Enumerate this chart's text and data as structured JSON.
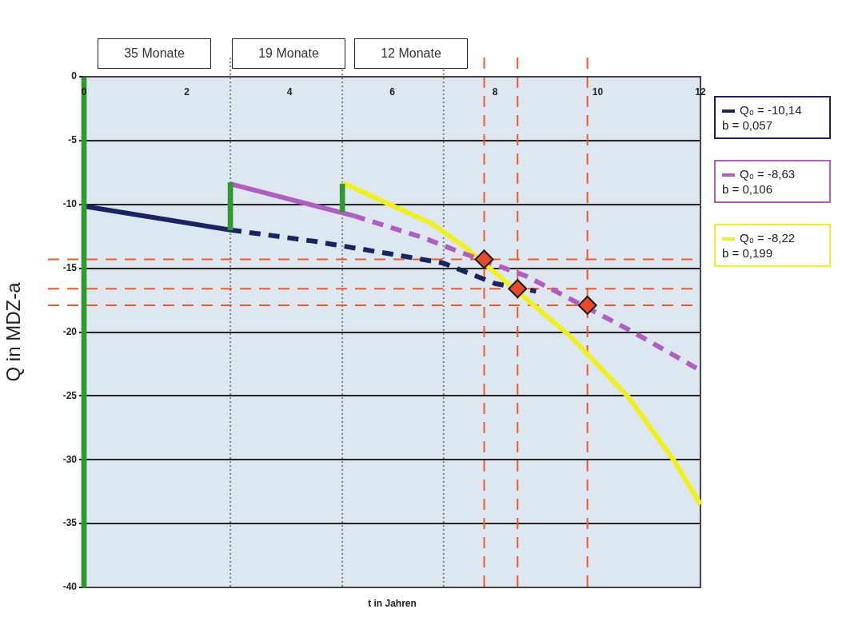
{
  "chart_data": {
    "type": "line",
    "xlabel": "t in Jahren",
    "ylabel": "Q in MDZ-a",
    "xlim": [
      0,
      12
    ],
    "xticks": [
      0,
      2,
      4,
      6,
      8,
      10,
      12
    ],
    "ylim": [
      -40,
      0
    ],
    "yticks": [
      -40,
      -35,
      -30,
      -25,
      -20,
      -15,
      -10,
      -5,
      0
    ],
    "grid": "y",
    "legend": "right",
    "tick_labels": "xy",
    "series": [
      {
        "type": "bar",
        "color": "#2e9a2e",
        "x": [
          0,
          2.85,
          5.03
        ],
        "base": [
          0,
          -8.3,
          -8.4
        ],
        "values": [
          -40,
          -3.7,
          -2.2
        ]
      },
      {
        "name": "Q₀ = -10,14\nb = 0,057",
        "color": "#1a2560",
        "line_style": "solid",
        "x": [
          0,
          2.85
        ],
        "values": [
          -10.14,
          -12.0
        ]
      },
      {
        "color": "#1a2560",
        "line_style": "dashed",
        "x": [
          2.85,
          4.5,
          6.0,
          7.0,
          8.0,
          8.8
        ],
        "values": [
          -12.0,
          -12.9,
          -13.9,
          -14.6,
          -16.2,
          -16.8
        ]
      },
      {
        "name": "Q₀ = -8,63\nb = 0,106",
        "color": "#b05fc0",
        "line_style": "solid",
        "x": [
          2.85,
          5.26
        ],
        "values": [
          -8.4,
          -10.9
        ]
      },
      {
        "color": "#b05fc0",
        "line_style": "dashed",
        "x": [
          5.26,
          6.6,
          7.3,
          8.6,
          9.37,
          10.6,
          12
        ],
        "values": [
          -10.9,
          -12.6,
          -13.7,
          -15.6,
          -17.2,
          -19.8,
          -23.0
        ]
      },
      {
        "name": "Q₀ = -8,22\nb = 0,199",
        "color": "#f0f020",
        "line_style": "solid",
        "x": [
          5.03,
          6.0,
          6.77,
          7.4,
          9.46,
          10.6,
          11.49,
          12
        ],
        "values": [
          -8.3,
          -10.1,
          -11.5,
          -13.3,
          -20.3,
          -25.1,
          -30.1,
          -33.5
        ]
      },
      {
        "type": "scatter",
        "color": "#e8492a",
        "marker": "diamond",
        "x": [
          7.79,
          8.44,
          9.8
        ],
        "values": [
          -14.3,
          -16.6,
          -17.9
        ]
      }
    ],
    "ref_lines": [
      {
        "axis": "x",
        "value": 2.85,
        "color": "#808080",
        "line_style": "dotted"
      },
      {
        "axis": "x",
        "value": 5.03,
        "color": "#808080",
        "line_style": "dotted"
      },
      {
        "axis": "x",
        "value": 7.0,
        "color": "#808080",
        "line_style": "dotted"
      },
      {
        "axis": "x",
        "value": 7.79,
        "color": "#f05a2a",
        "line_style": "dashed"
      },
      {
        "axis": "x",
        "value": 8.44,
        "color": "#f05a2a",
        "line_style": "dashed"
      },
      {
        "axis": "x",
        "value": 9.8,
        "color": "#f05a2a",
        "line_style": "dashed"
      },
      {
        "axis": "y",
        "value": -14.3,
        "color": "#f05a2a",
        "line_style": "dashed"
      },
      {
        "axis": "y",
        "value": -16.6,
        "color": "#f05a2a",
        "line_style": "dashed"
      },
      {
        "axis": "y",
        "value": -17.9,
        "color": "#f05a2a",
        "line_style": "dashed"
      }
    ],
    "annotations": [
      "35 Monate",
      "19 Monate",
      "12 Monate"
    ]
  }
}
